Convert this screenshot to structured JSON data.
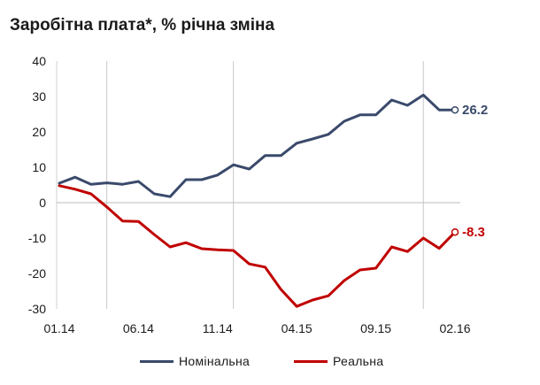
{
  "chart_data": {
    "type": "line",
    "title": "Заробітна плата*, % річна зміна",
    "xlabel": "",
    "ylabel": "",
    "ylim": [
      -30,
      40
    ],
    "yticks": [
      40,
      30,
      20,
      10,
      0,
      -10,
      -20,
      -30
    ],
    "x": [
      "01.14",
      "02.14",
      "03.14",
      "04.14",
      "05.14",
      "06.14",
      "07.14",
      "08.14",
      "09.14",
      "10.14",
      "11.14",
      "12.14",
      "01.15",
      "02.15",
      "03.15",
      "04.15",
      "05.15",
      "06.15",
      "07.15",
      "08.15",
      "09.15",
      "10.15",
      "11.15",
      "12.15",
      "01.16",
      "02.16"
    ],
    "x_tick_labels": [
      "01.14",
      "06.14",
      "11.14",
      "04.15",
      "09.15",
      "02.16"
    ],
    "series": [
      {
        "name": "Номінальна",
        "color": "#3a4a6b",
        "values": [
          5.5,
          7.2,
          5.2,
          5.6,
          5.2,
          6.0,
          2.5,
          1.7,
          6.5,
          6.5,
          7.8,
          10.7,
          9.5,
          13.3,
          13.3,
          16.8,
          18.0,
          19.3,
          23.0,
          24.8,
          24.8,
          29.0,
          27.5,
          30.4,
          26.2,
          26.2
        ],
        "end_label": "26.2"
      },
      {
        "name": "Реальна",
        "color": "#c00000",
        "values": [
          4.8,
          3.8,
          2.5,
          -1.2,
          -5.2,
          -5.3,
          -9.0,
          -12.5,
          -11.3,
          -13.0,
          -13.3,
          -13.5,
          -17.3,
          -18.2,
          -24.5,
          -29.3,
          -27.5,
          -26.3,
          -22.0,
          -19.0,
          -18.5,
          -12.5,
          -13.8,
          -10.0,
          -12.9,
          -8.3
        ],
        "end_label": "-8.3"
      }
    ],
    "grid": "vertical lines at 04.14, 12.14, 12.15 only",
    "legend_position": "bottom"
  }
}
